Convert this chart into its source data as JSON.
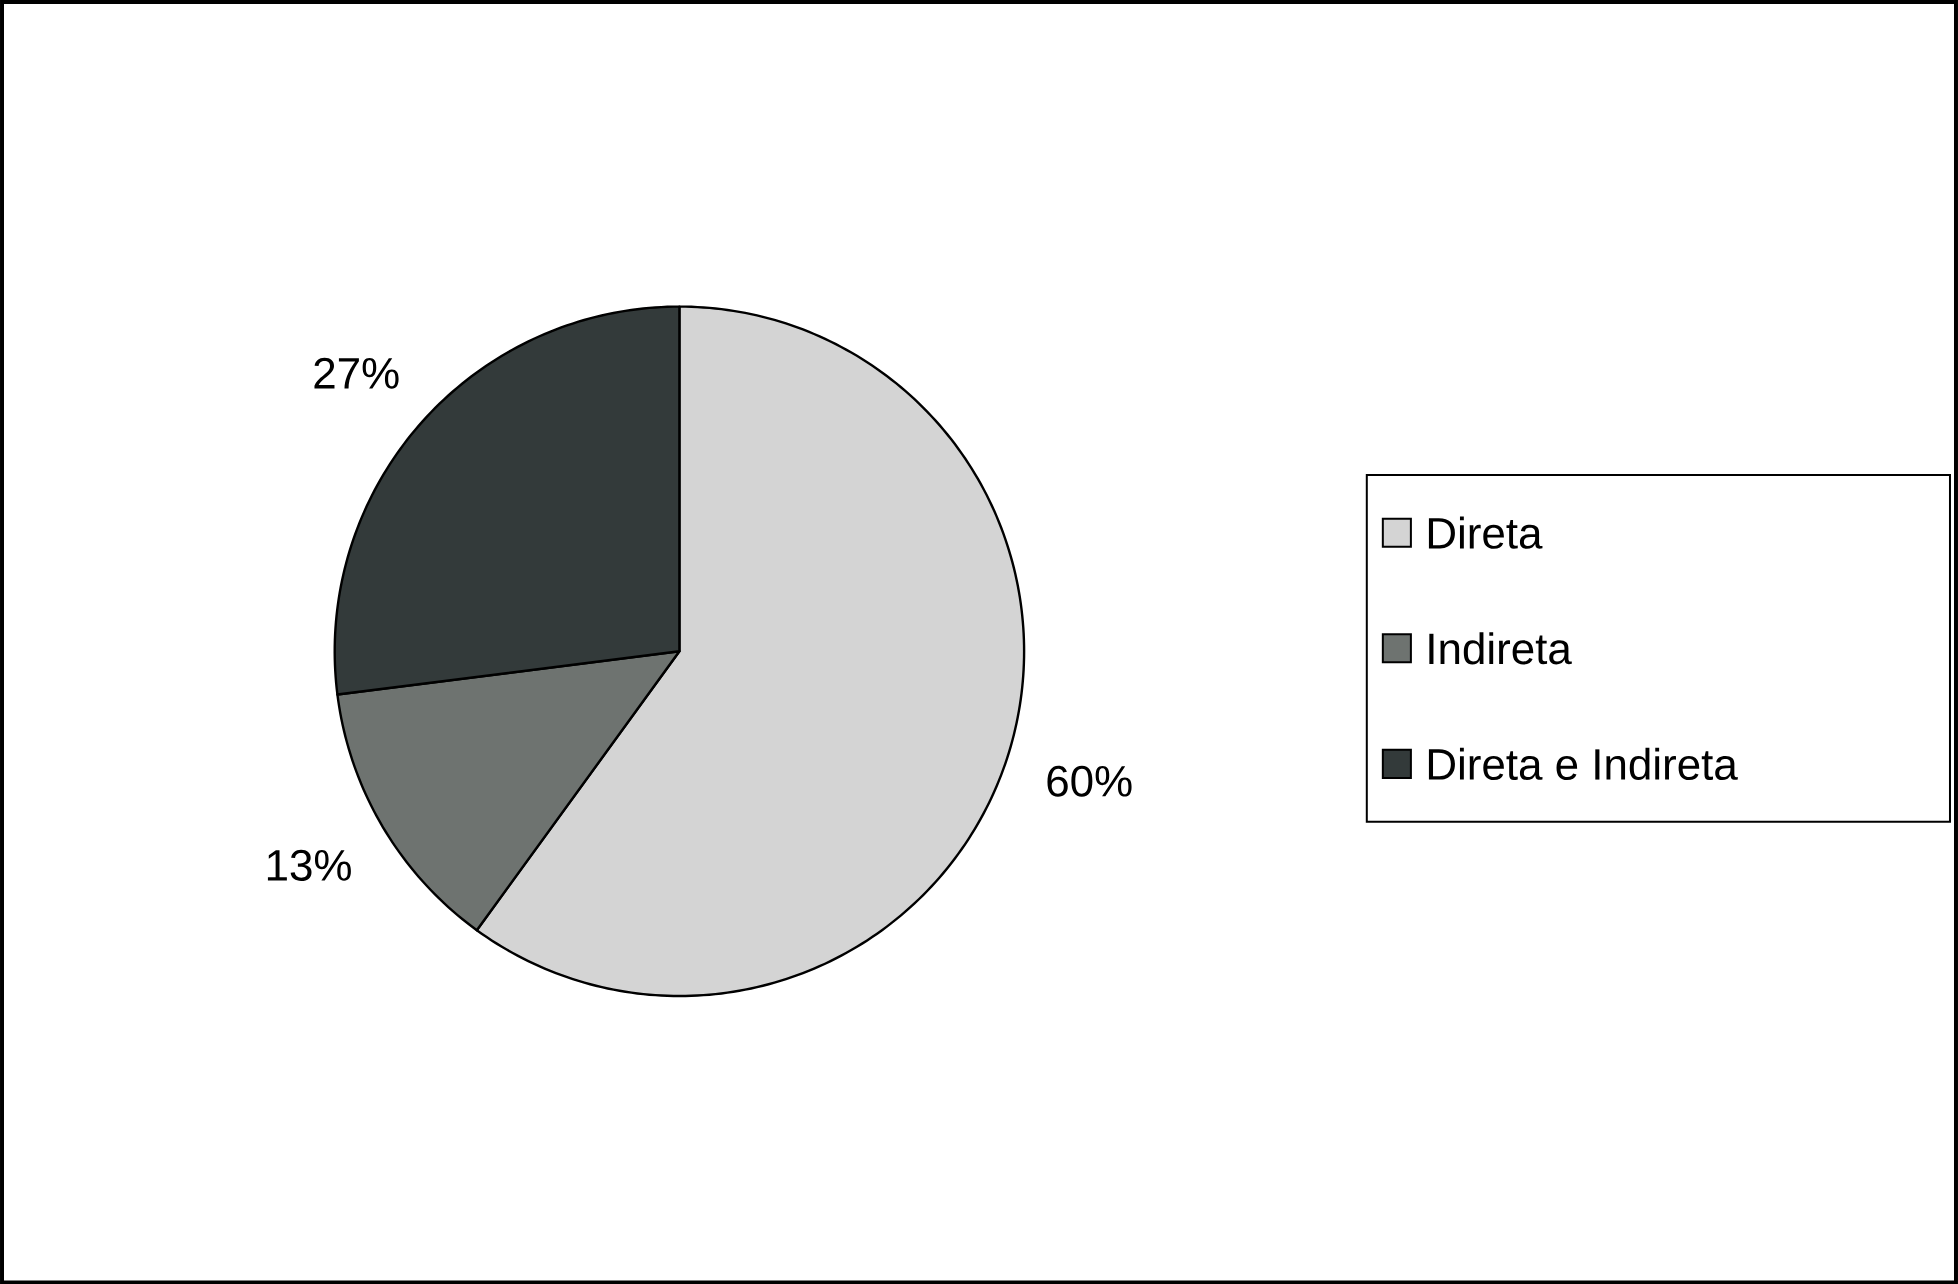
{
  "chart_data": {
    "type": "pie",
    "categories": [
      "Direta",
      "Indireta",
      "Direta e Indireta"
    ],
    "values": [
      60,
      13,
      27
    ],
    "value_labels": [
      "60%",
      "13%",
      "27%"
    ],
    "colors": [
      "#d4d4d4",
      "#6e7370",
      "#333a3a"
    ],
    "legend": "right"
  }
}
